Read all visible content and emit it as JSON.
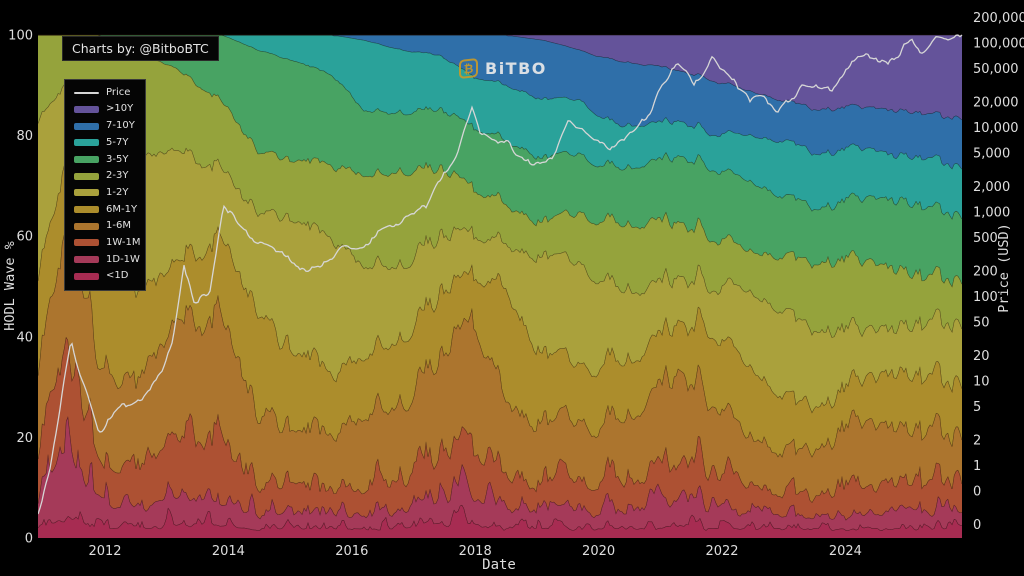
{
  "branding": {
    "credit": "Charts by: @BitboBTC",
    "logo_text": "BiTBO",
    "logo_glyph": "₿",
    "logo_color": "#c79a2a"
  },
  "axes": {
    "left": {
      "title": "HODL Wave %",
      "tick_values": [
        0,
        20,
        40,
        60,
        80,
        100
      ],
      "range": [
        0,
        100
      ]
    },
    "right": {
      "title": "Price (USD)",
      "scale": "log",
      "tick_values": [
        200000,
        100000,
        50000,
        20000,
        10000,
        5000,
        2000,
        1000,
        500,
        200,
        100,
        50,
        20,
        10,
        5,
        2,
        1,
        0.5,
        0.2
      ],
      "tick_labels": [
        "200,000",
        "100,000",
        "50,000",
        "20,000",
        "10,000",
        "5,000",
        "2,000",
        "1,000",
        "500",
        "200",
        "100",
        "50",
        "20",
        "10",
        "5",
        "2",
        "1",
        "0",
        "0"
      ]
    },
    "x": {
      "title": "Date",
      "tick_values": [
        2012,
        2014,
        2016,
        2018,
        2020,
        2022,
        2024
      ],
      "tick_labels": [
        "2012",
        "2014",
        "2016",
        "2018",
        "2020",
        "2022",
        "2024"
      ],
      "range": [
        2010.91,
        2025.91
      ]
    }
  },
  "legend": {
    "items": [
      {
        "label": "Price",
        "color": "#d6d6d6",
        "type": "line"
      },
      {
        "label": ">10Y",
        "color": "#64539a",
        "type": "patch"
      },
      {
        "label": "7-10Y",
        "color": "#2f6fa9",
        "type": "patch"
      },
      {
        "label": "5-7Y",
        "color": "#2aa29a",
        "type": "patch"
      },
      {
        "label": "3-5Y",
        "color": "#48a363",
        "type": "patch"
      },
      {
        "label": "2-3Y",
        "color": "#95a33c",
        "type": "patch"
      },
      {
        "label": "1-2Y",
        "color": "#aaa13c",
        "type": "patch"
      },
      {
        "label": "6M-1Y",
        "color": "#ac8d2c",
        "type": "patch"
      },
      {
        "label": "1-6M",
        "color": "#ac752e",
        "type": "patch"
      },
      {
        "label": "1W-1M",
        "color": "#ad5133",
        "type": "patch"
      },
      {
        "label": "1D-1W",
        "color": "#a53a59",
        "type": "patch"
      },
      {
        "label": "<1D",
        "color": "#a72c52",
        "type": "patch"
      }
    ]
  },
  "chart_data": {
    "type": "area",
    "stacked": true,
    "title": "",
    "xlabel": "Date",
    "ylabel_left": "HODL Wave %",
    "ylabel_right": "Price (USD)",
    "ylim_left": [
      0,
      100
    ],
    "grid": false,
    "legend_position": "upper-left",
    "x": [
      2010.9,
      2011.4,
      2011.9,
      2012.5,
      2013.2,
      2013.9,
      2014.5,
      2015.0,
      2015.7,
      2016.2,
      2016.8,
      2017.4,
      2017.95,
      2018.5,
      2019.1,
      2019.7,
      2020.2,
      2020.8,
      2021.3,
      2021.8,
      2022.4,
      2023.0,
      2023.6,
      2024.2,
      2024.8,
      2025.4,
      2025.9
    ],
    "series": [
      {
        "name": "<1D",
        "color": "#a72c52",
        "values": [
          2,
          5,
          2,
          2,
          3,
          3,
          2,
          2,
          2,
          2,
          2,
          3,
          3,
          2,
          2,
          2,
          2,
          2,
          3,
          2,
          2,
          2,
          2,
          2,
          2,
          2,
          2
        ]
      },
      {
        "name": "1D-1W",
        "color": "#a53a59",
        "values": [
          4,
          13,
          5,
          4,
          6,
          5,
          3,
          3,
          3,
          3,
          3,
          5,
          5,
          4,
          3,
          3,
          3,
          4,
          5,
          4,
          3,
          3,
          2,
          3,
          3,
          3,
          3
        ]
      },
      {
        "name": "1W-1M",
        "color": "#ad5133",
        "values": [
          7,
          17,
          8,
          7,
          12,
          10,
          6,
          5,
          5,
          5,
          6,
          8,
          10,
          6,
          5,
          6,
          5,
          6,
          8,
          7,
          5,
          4,
          4,
          6,
          5,
          5,
          5
        ]
      },
      {
        "name": "1-6M",
        "color": "#ac752e",
        "values": [
          17,
          25,
          20,
          16,
          22,
          24,
          14,
          11,
          11,
          14,
          14,
          18,
          26,
          15,
          11,
          12,
          11,
          14,
          17,
          13,
          10,
          8,
          9,
          13,
          11,
          10,
          9
        ]
      },
      {
        "name": "6M-1Y",
        "color": "#ac8d2c",
        "values": [
          19,
          14,
          22,
          18,
          12,
          16,
          20,
          16,
          12,
          12,
          13,
          13,
          9,
          22,
          14,
          11,
          12,
          11,
          10,
          14,
          14,
          11,
          8,
          8,
          11,
          11,
          10
        ]
      },
      {
        "name": "1-2Y",
        "color": "#aaa13c",
        "values": [
          33,
          16,
          26,
          28,
          22,
          14,
          20,
          26,
          26,
          18,
          15,
          12,
          8,
          9,
          20,
          20,
          16,
          12,
          9,
          9,
          15,
          17,
          15,
          10,
          9,
          11,
          12
        ]
      },
      {
        "name": "2-3Y",
        "color": "#95a33c",
        "values": [
          18,
          10,
          17,
          22,
          16,
          14,
          12,
          12,
          15,
          18,
          19,
          14,
          9,
          8,
          7,
          10,
          13,
          13,
          11,
          10,
          8,
          11,
          14,
          14,
          12,
          9,
          9
        ]
      },
      {
        "name": "3-5Y",
        "color": "#48a363",
        "values": [
          0,
          0,
          0,
          3,
          7,
          14,
          20,
          20,
          18,
          13,
          12,
          12,
          12,
          13,
          13,
          12,
          11,
          12,
          13,
          14,
          14,
          12,
          11,
          12,
          14,
          14,
          13
        ]
      },
      {
        "name": "5-7Y",
        "color": "#2aa29a",
        "values": [
          0,
          0,
          0,
          0,
          0,
          0,
          3,
          5,
          8,
          14,
          13,
          11,
          10,
          11,
          12,
          11,
          9,
          8,
          7,
          7,
          9,
          11,
          11,
          10,
          9,
          10,
          10
        ]
      },
      {
        "name": "7-10Y",
        "color": "#2f6fa9",
        "values": [
          0,
          0,
          0,
          0,
          0,
          0,
          0,
          0,
          0,
          1,
          3,
          4,
          8,
          10,
          12,
          10,
          13,
          12,
          10,
          11,
          9,
          8,
          9,
          8,
          9,
          9,
          10
        ]
      },
      {
        "name": ">10Y",
        "color": "#64539a",
        "values": [
          0,
          0,
          0,
          0,
          0,
          0,
          0,
          0,
          0,
          0,
          0,
          0,
          0,
          0,
          1,
          3,
          5,
          6,
          7,
          9,
          11,
          13,
          15,
          14,
          15,
          16,
          17
        ]
      }
    ],
    "price_series": {
      "name": "Price",
      "color": "#d6d6d6",
      "scale": "log",
      "x": [
        2010.9,
        2011.1,
        2011.45,
        2011.6,
        2011.9,
        2012.3,
        2012.6,
        2012.9,
        2013.1,
        2013.28,
        2013.45,
        2013.7,
        2013.92,
        2014.1,
        2014.4,
        2014.8,
        2015.1,
        2015.5,
        2015.9,
        2016.3,
        2016.6,
        2016.95,
        2017.2,
        2017.45,
        2017.7,
        2017.95,
        2018.1,
        2018.3,
        2018.55,
        2018.9,
        2019.0,
        2019.3,
        2019.5,
        2019.8,
        2020.0,
        2020.2,
        2020.6,
        2020.9,
        2021.0,
        2021.1,
        2021.27,
        2021.4,
        2021.55,
        2021.7,
        2021.85,
        2022.0,
        2022.2,
        2022.45,
        2022.7,
        2022.9,
        2023.1,
        2023.3,
        2023.6,
        2023.8,
        2024.0,
        2024.2,
        2024.4,
        2024.55,
        2024.7,
        2024.85,
        2024.95,
        2025.05,
        2025.2,
        2025.35,
        2025.5,
        2025.65,
        2025.8,
        2025.9
      ],
      "values": [
        0.25,
        0.9,
        29,
        11,
        2.4,
        5,
        6.5,
        13,
        30,
        230,
        80,
        120,
        1130,
        800,
        450,
        350,
        210,
        240,
        380,
        420,
        680,
        960,
        1200,
        2500,
        4300,
        19200,
        8000,
        7000,
        6300,
        3800,
        3500,
        5200,
        12900,
        8500,
        7200,
        5000,
        9200,
        19000,
        29000,
        35000,
        63500,
        50000,
        31000,
        47000,
        68500,
        47000,
        39000,
        20000,
        23500,
        15800,
        23000,
        28000,
        30000,
        27000,
        44000,
        71000,
        63000,
        67000,
        56000,
        69000,
        99000,
        104000,
        84000,
        95000,
        108000,
        118000,
        112000,
        117000
      ]
    }
  }
}
